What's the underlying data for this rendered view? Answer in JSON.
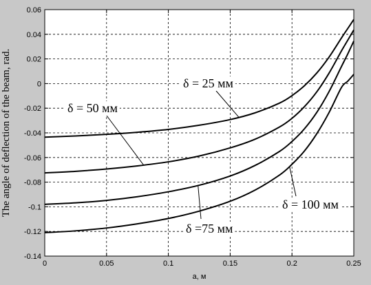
{
  "colors": {
    "background": "#c8c8c8",
    "plot_area": "#ffffff",
    "grid": "#000000",
    "lines": "#000000"
  },
  "chart_data": {
    "type": "line",
    "title": "",
    "xlabel": "a, м",
    "ylabel": "The angle of deflection of the beam, rad.",
    "xlim": [
      0,
      0.25
    ],
    "ylim": [
      -0.14,
      0.06
    ],
    "grid": true,
    "x_ticks": [
      "0",
      "0.05",
      "0.1",
      "0.15",
      "0.2",
      "0.25"
    ],
    "y_ticks": [
      "0.06",
      "0.04",
      "0.02",
      "0",
      "-0.02",
      "-0.04",
      "-0.06",
      "-0.08",
      "-0.1",
      "-0.12",
      "-0.14"
    ],
    "x": [
      0,
      0.025,
      0.05,
      0.075,
      0.1,
      0.125,
      0.15,
      0.17,
      0.19,
      0.2,
      0.21,
      0.22,
      0.23,
      0.24,
      0.245,
      0.25
    ],
    "series": [
      {
        "name": "δ = 25 мм",
        "values": [
          -0.0435,
          -0.0425,
          -0.0412,
          -0.0395,
          -0.0372,
          -0.0338,
          -0.0292,
          -0.0238,
          -0.0158,
          -0.0098,
          -0.0018,
          0.0085,
          0.0215,
          0.037,
          0.0445,
          0.052
        ]
      },
      {
        "name": "δ = 50 мм",
        "values": [
          -0.0725,
          -0.0712,
          -0.0693,
          -0.0668,
          -0.0635,
          -0.0588,
          -0.0522,
          -0.0452,
          -0.0352,
          -0.0282,
          -0.0188,
          -0.0068,
          0.0085,
          0.0265,
          0.035,
          0.0435
        ]
      },
      {
        "name": "δ =75 мм",
        "values": [
          -0.098,
          -0.0968,
          -0.0948,
          -0.0918,
          -0.0878,
          -0.0825,
          -0.075,
          -0.0665,
          -0.055,
          -0.047,
          -0.0368,
          -0.0235,
          -0.0065,
          0.0138,
          0.0238,
          0.0345
        ]
      },
      {
        "name": "δ = 100 мм",
        "values": [
          -0.121,
          -0.1195,
          -0.1172,
          -0.1138,
          -0.1095,
          -0.1035,
          -0.0955,
          -0.0865,
          -0.0742,
          -0.0655,
          -0.0548,
          -0.0408,
          -0.0235,
          -0.0032,
          0.0018,
          0.0075
        ]
      }
    ],
    "annotations": [
      {
        "text": "δ = 25 мм",
        "series": 0,
        "x": 0.157
      },
      {
        "text": "δ = 50 мм",
        "series": 1,
        "x": 0.08
      },
      {
        "text": "δ =75 мм",
        "series": 2,
        "x": 0.124
      },
      {
        "text": "δ = 100 мм",
        "series": 3,
        "x": 0.198
      }
    ]
  }
}
